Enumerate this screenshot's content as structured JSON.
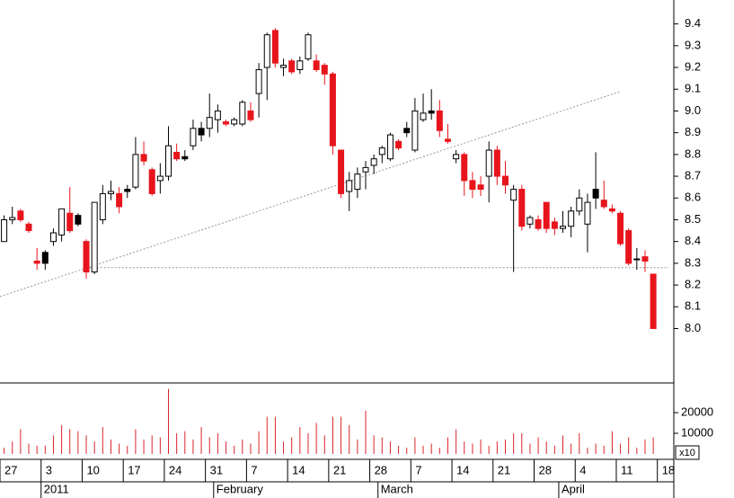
{
  "chart_data": {
    "type": "candlestick",
    "open": [
      8.4,
      8.5,
      8.54,
      8.48,
      8.31,
      8.35,
      8.4,
      8.43,
      8.53,
      8.52,
      8.4,
      8.26,
      8.5,
      8.62,
      8.62,
      8.64,
      8.65,
      8.8,
      8.73,
      8.68,
      8.7,
      8.81,
      8.79,
      8.84,
      8.92,
      8.92,
      8.96,
      8.95,
      8.94,
      8.94,
      9.0,
      9.08,
      9.2,
      9.37,
      9.2,
      9.23,
      9.19,
      9.24,
      9.23,
      9.21,
      9.17,
      8.82,
      8.63,
      8.64,
      8.72,
      8.75,
      8.8,
      8.78,
      8.86,
      8.92,
      8.82,
      8.96,
      8.99,
      9.0,
      8.87,
      8.78,
      8.8,
      8.68,
      8.64,
      8.7,
      8.82,
      8.7,
      8.59,
      8.64,
      8.48,
      8.5,
      8.58,
      8.49,
      8.46,
      8.47,
      8.54,
      8.48,
      8.6,
      8.59,
      8.55,
      8.53,
      8.45,
      8.32,
      8.33,
      8.25
    ],
    "high": [
      8.52,
      8.56,
      8.55,
      8.49,
      8.37,
      8.36,
      8.46,
      8.55,
      8.65,
      8.53,
      8.41,
      8.58,
      8.66,
      8.68,
      8.65,
      8.66,
      8.88,
      8.86,
      8.74,
      8.76,
      8.93,
      8.85,
      8.82,
      8.96,
      8.95,
      9.08,
      9.03,
      8.96,
      8.97,
      9.05,
      9.04,
      9.22,
      9.36,
      9.38,
      9.24,
      9.24,
      9.25,
      9.36,
      9.26,
      9.22,
      9.18,
      8.82,
      8.72,
      8.74,
      8.77,
      8.8,
      8.84,
      8.9,
      8.87,
      8.95,
      9.06,
      9.08,
      9.1,
      9.05,
      8.94,
      8.82,
      8.81,
      8.72,
      8.7,
      8.86,
      8.84,
      8.77,
      8.66,
      8.66,
      8.52,
      8.52,
      8.58,
      8.51,
      8.54,
      8.56,
      8.64,
      8.62,
      8.81,
      8.68,
      8.57,
      8.54,
      8.46,
      8.37,
      8.36,
      8.25
    ],
    "low": [
      8.4,
      8.48,
      8.49,
      8.44,
      8.27,
      8.27,
      8.38,
      8.4,
      8.44,
      8.47,
      8.23,
      8.25,
      8.48,
      8.59,
      8.53,
      8.6,
      8.64,
      8.75,
      8.61,
      8.62,
      8.68,
      8.77,
      8.77,
      8.82,
      8.86,
      8.88,
      8.9,
      8.93,
      8.93,
      8.93,
      8.95,
      8.97,
      9.05,
      9.2,
      9.16,
      9.17,
      9.17,
      9.23,
      9.18,
      9.12,
      8.8,
      8.6,
      8.54,
      8.6,
      8.64,
      8.71,
      8.76,
      8.77,
      8.82,
      8.88,
      8.81,
      8.95,
      8.96,
      8.88,
      8.85,
      8.76,
      8.61,
      8.6,
      8.61,
      8.58,
      8.66,
      8.62,
      8.26,
      8.45,
      8.46,
      8.45,
      8.44,
      8.43,
      8.44,
      8.42,
      8.52,
      8.35,
      8.55,
      8.55,
      8.53,
      8.38,
      8.29,
      8.27,
      8.26,
      8.0
    ],
    "close": [
      8.5,
      8.51,
      8.5,
      8.45,
      8.3,
      8.3,
      8.44,
      8.55,
      8.45,
      8.48,
      8.26,
      8.58,
      8.62,
      8.63,
      8.56,
      8.63,
      8.8,
      8.77,
      8.62,
      8.7,
      8.84,
      8.78,
      8.78,
      8.92,
      8.89,
      8.97,
      9.0,
      8.94,
      8.96,
      9.04,
      8.96,
      9.19,
      9.35,
      9.22,
      9.21,
      9.18,
      9.23,
      9.35,
      9.19,
      9.17,
      8.84,
      8.62,
      8.68,
      8.71,
      8.74,
      8.78,
      8.83,
      8.89,
      8.83,
      8.9,
      9.0,
      8.99,
      9.0,
      8.91,
      8.86,
      8.8,
      8.68,
      8.64,
      8.66,
      8.82,
      8.7,
      8.66,
      8.64,
      8.47,
      8.51,
      8.46,
      8.46,
      8.46,
      8.47,
      8.54,
      8.6,
      8.58,
      8.64,
      8.56,
      8.54,
      8.39,
      8.3,
      8.32,
      8.31,
      8.0
    ],
    "styles": [
      "up",
      "up",
      "down",
      "down",
      "down",
      "flat",
      "up",
      "up",
      "down",
      "flat",
      "down",
      "up",
      "up",
      "up",
      "down",
      "flat",
      "up",
      "down",
      "down",
      "up",
      "up",
      "down",
      "flat",
      "up",
      "flat",
      "up",
      "up",
      "down",
      "up",
      "up",
      "down",
      "up",
      "up",
      "down",
      "up",
      "down",
      "up",
      "up",
      "down",
      "down",
      "down",
      "down",
      "up",
      "up",
      "up",
      "up",
      "up",
      "up",
      "down",
      "flat",
      "up",
      "up",
      "flat",
      "down",
      "down",
      "up",
      "down",
      "down",
      "down",
      "up",
      "down",
      "down",
      "up",
      "down",
      "up",
      "down",
      "down",
      "down",
      "up",
      "up",
      "up",
      "up",
      "flat",
      "down",
      "down",
      "down",
      "down",
      "flat",
      "down",
      "down"
    ],
    "colors": {
      "up": "#ffffff",
      "down": "#e8141c",
      "flat": "#000000"
    },
    "volume": [
      3000,
      6000,
      12000,
      5000,
      4000,
      4000,
      9000,
      14000,
      12000,
      11000,
      9000,
      6000,
      13000,
      7000,
      5000,
      4000,
      12000,
      7000,
      9000,
      8000,
      31500,
      10000,
      11000,
      7000,
      13000,
      8000,
      10000,
      6000,
      4000,
      7000,
      5000,
      11000,
      18000,
      18000,
      6000,
      8000,
      13000,
      10000,
      15000,
      9000,
      18000,
      18000,
      14000,
      7000,
      21000,
      9000,
      8000,
      6000,
      4000,
      3000,
      8000,
      4000,
      5000,
      3000,
      8000,
      12000,
      6000,
      5000,
      7000,
      4000,
      6000,
      7000,
      10000,
      10000,
      5000,
      8000,
      6000,
      4000,
      9000,
      5000,
      10000,
      3000,
      5000,
      4000,
      11000,
      5000,
      8000,
      3000,
      7000,
      8000
    ],
    "volume_color": "#d9252b",
    "xlim": [
      -0.5,
      81.5
    ],
    "ylim": [
      7.75,
      9.51
    ],
    "yticks": [
      {
        "value": 8.0,
        "label": "8.0"
      },
      8.1,
      8.2,
      8.3,
      8.4,
      8.5,
      8.6,
      8.7,
      8.8,
      8.9,
      {
        "value": 9.0,
        "label": "9.0"
      },
      9.1,
      9.2,
      9.3,
      9.4
    ],
    "vlim": [
      0,
      33500
    ],
    "vticks": [
      10000,
      20000
    ],
    "volume_unit": "x10",
    "xticks": [
      {
        "value": -0.5,
        "label": "27"
      },
      {
        "value": 4.5,
        "label": "3"
      },
      {
        "value": 9.5,
        "label": "10"
      },
      {
        "value": 14.5,
        "label": "17"
      },
      {
        "value": 19.5,
        "label": "24"
      },
      {
        "value": 24.5,
        "label": "31"
      },
      {
        "value": 29.5,
        "label": "7"
      },
      {
        "value": 34.5,
        "label": "14"
      },
      {
        "value": 39.5,
        "label": "21"
      },
      {
        "value": 44.5,
        "label": "28"
      },
      {
        "value": 49.5,
        "label": "7"
      },
      {
        "value": 54.5,
        "label": "14"
      },
      {
        "value": 59.5,
        "label": "21"
      },
      {
        "value": 64.5,
        "label": "28"
      },
      {
        "value": 69.5,
        "label": "4"
      },
      {
        "value": 74.5,
        "label": "11"
      },
      {
        "value": 79.5,
        "label": "18"
      }
    ],
    "months": [
      {
        "value": 4.5,
        "label": "2011"
      },
      {
        "value": 25.5,
        "label": "February"
      },
      {
        "value": 45.5,
        "label": "March"
      },
      {
        "value": 67.5,
        "label": "April"
      }
    ],
    "lines": [
      {
        "x": [
          -0.5,
          74.9
        ],
        "y": [
          8.147,
          9.088
        ]
      },
      {
        "x": [
          10.4,
          80.9
        ],
        "y": [
          8.28,
          8.28
        ]
      }
    ]
  }
}
